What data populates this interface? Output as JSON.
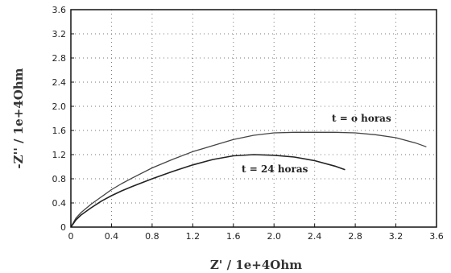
{
  "chart_data": {
    "type": "line",
    "xlabel": "Z' / 1e+4Ohm",
    "ylabel": "-Z'' / 1e+4Ohm",
    "xlim": [
      0,
      3.6
    ],
    "ylim": [
      0,
      3.6
    ],
    "x_ticks": [
      "0",
      "0.4",
      "0.8",
      "1.2",
      "1.6",
      "2.0",
      "2.4",
      "2.8",
      "3.2",
      "3.6"
    ],
    "y_ticks": [
      "0",
      "0.4",
      "0.8",
      "1.2",
      "1.6",
      "2.0",
      "2.4",
      "2.8",
      "3.2",
      "3.6"
    ],
    "grid": true,
    "series": [
      {
        "name": "t = o horas",
        "color": "#444444",
        "x": [
          0.0,
          0.05,
          0.1,
          0.2,
          0.3,
          0.4,
          0.5,
          0.6,
          0.8,
          1.0,
          1.2,
          1.4,
          1.6,
          1.8,
          2.0,
          2.2,
          2.4,
          2.6,
          2.8,
          3.0,
          3.2,
          3.4,
          3.5
        ],
        "y": [
          0.0,
          0.15,
          0.24,
          0.38,
          0.5,
          0.62,
          0.72,
          0.81,
          0.98,
          1.12,
          1.25,
          1.35,
          1.45,
          1.52,
          1.56,
          1.57,
          1.57,
          1.57,
          1.56,
          1.53,
          1.48,
          1.39,
          1.33
        ]
      },
      {
        "name": "t = 24 horas",
        "color": "#222222",
        "x": [
          0.0,
          0.05,
          0.1,
          0.2,
          0.3,
          0.4,
          0.5,
          0.6,
          0.8,
          1.0,
          1.2,
          1.4,
          1.6,
          1.8,
          2.0,
          2.2,
          2.4,
          2.6,
          2.7
        ],
        "y": [
          0.0,
          0.12,
          0.2,
          0.32,
          0.43,
          0.52,
          0.6,
          0.67,
          0.8,
          0.92,
          1.03,
          1.12,
          1.18,
          1.2,
          1.19,
          1.16,
          1.1,
          1.01,
          0.95
        ]
      }
    ]
  }
}
